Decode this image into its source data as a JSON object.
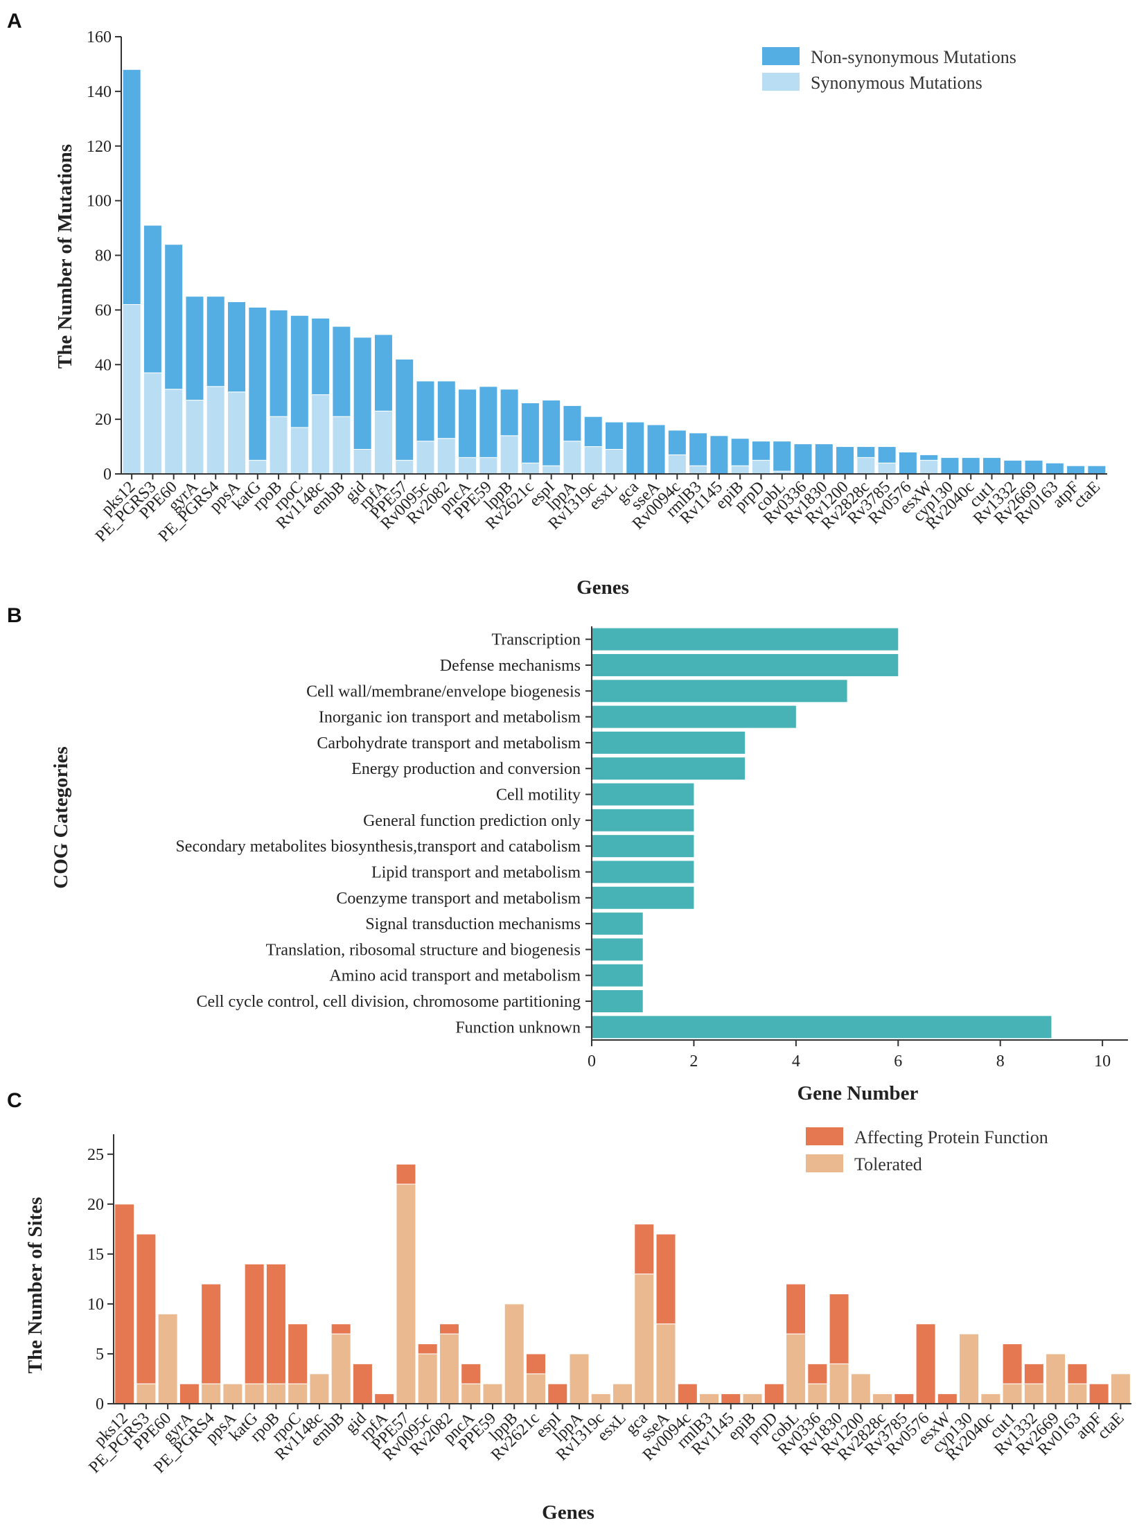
{
  "figure": {
    "panels": [
      "A",
      "B",
      "C"
    ]
  },
  "colors": {
    "nonsyn": "#54ADE3",
    "syn": "#B9DDF3",
    "cog": "#48B3B7",
    "affect": "#E57751",
    "tolerated": "#EBB98F"
  },
  "chart_data": [
    {
      "id": "A",
      "type": "bar",
      "stacked": true,
      "xlabel": "Genes",
      "ylabel": "The Number of Mutations",
      "ylim": [
        0,
        160
      ],
      "yticks": [
        0,
        20,
        40,
        60,
        80,
        100,
        120,
        140,
        160
      ],
      "legend_position": "top-right",
      "categories": [
        "pks12",
        "PE_PGRS3",
        "PPE60",
        "gyrA",
        "PE_PGRS4",
        "ppsA",
        "katG",
        "rpoB",
        "rpoC",
        "Rv1148c",
        "embB",
        "gid",
        "rpfA",
        "PPE57",
        "Rv0095c",
        "Rv2082",
        "pncA",
        "PPE59",
        "lppB",
        "Rv2621c",
        "espI",
        "lppA",
        "Rv1319c",
        "esxL",
        "gca",
        "sseA",
        "Rv0094c",
        "rmlB3",
        "Rv1145",
        "epiB",
        "prpD",
        "cobL",
        "Rv0336",
        "Rv1830",
        "Rv1200",
        "Rv2828c",
        "Rv3785",
        "Rv0576",
        "esxW",
        "cyp130",
        "Rv2040c",
        "cut1",
        "Rv1332",
        "Rv2669",
        "Rv0163",
        "atpF",
        "ctaE"
      ],
      "series": [
        {
          "name": "Non-synonymous Mutations",
          "values": [
            86,
            54,
            53,
            38,
            33,
            33,
            56,
            39,
            41,
            28,
            33,
            41,
            28,
            37,
            22,
            21,
            25,
            26,
            17,
            22,
            24,
            13,
            11,
            10,
            19,
            18,
            9,
            12,
            14,
            10,
            7,
            11,
            11,
            11,
            10,
            4,
            6,
            8,
            2,
            6,
            6,
            6,
            5,
            5,
            4,
            3,
            3
          ]
        },
        {
          "name": "Synonymous Mutations",
          "values": [
            62,
            37,
            31,
            27,
            32,
            30,
            5,
            21,
            17,
            29,
            21,
            9,
            23,
            5,
            12,
            13,
            6,
            6,
            14,
            4,
            3,
            12,
            10,
            9,
            0,
            0,
            7,
            3,
            0,
            3,
            5,
            1,
            0,
            0,
            0,
            6,
            4,
            0,
            5,
            0,
            0,
            0,
            0,
            0,
            0,
            0,
            0
          ]
        }
      ]
    },
    {
      "id": "B",
      "type": "bar",
      "orientation": "horizontal",
      "xlabel": "Gene Number",
      "ylabel": "COG Categories",
      "xlim": [
        0,
        10.5
      ],
      "xticks": [
        0,
        2,
        4,
        6,
        8,
        10
      ],
      "categories": [
        "Transcription",
        "Defense mechanisms",
        "Cell wall/membrane/envelope biogenesis",
        "Inorganic ion transport and metabolism",
        "Carbohydrate transport and metabolism",
        "Energy production and conversion",
        "Cell motility",
        "General function prediction only",
        "Secondary metabolites biosynthesis,transport and catabolism",
        "Lipid transport and metabolism",
        "Coenzyme transport and metabolism",
        "Signal transduction mechanisms",
        "Translation, ribosomal structure and biogenesis",
        "Amino acid transport and metabolism",
        "Cell cycle control, cell division, chromosome partitioning",
        "Function unknown"
      ],
      "values": [
        6,
        6,
        5,
        4,
        3,
        3,
        2,
        2,
        2,
        2,
        2,
        1,
        1,
        1,
        1,
        9
      ]
    },
    {
      "id": "C",
      "type": "bar",
      "stacked": true,
      "xlabel": "Genes",
      "ylabel": "The Number of Sites",
      "ylim": [
        0,
        27
      ],
      "yticks": [
        0,
        5,
        10,
        15,
        20,
        25
      ],
      "legend_position": "top-right",
      "categories": [
        "pks12",
        "PE_PGRS3",
        "PPE60",
        "gyrA",
        "PE_PGRS4",
        "ppsA",
        "katG",
        "rpoB",
        "rpoC",
        "Rv1148c",
        "embB",
        "gid",
        "rpfA",
        "PPE57",
        "Rv0095c",
        "Rv2082",
        "pncA",
        "PPE59",
        "lppB",
        "Rv2621c",
        "espI",
        "lppA",
        "Rv1319c",
        "esxL",
        "gca",
        "sseA",
        "Rv0094c",
        "rmlB3",
        "Rv1145",
        "epiB",
        "prpD",
        "cobL",
        "Rv0336",
        "Rv1830",
        "Rv1200",
        "Rv2828c",
        "Rv3785",
        "Rv0576",
        "esxW",
        "cyp130",
        "Rv2040c",
        "cut1",
        "Rv1332",
        "Rv2669",
        "Rv0163",
        "atpF",
        "ctaE"
      ],
      "series": [
        {
          "name": "Affecting Protein Function",
          "values": [
            20,
            15,
            0,
            2,
            10,
            0,
            12,
            12,
            6,
            0,
            1,
            4,
            1,
            2,
            1,
            1,
            2,
            0,
            0,
            2,
            2,
            0,
            0,
            0,
            5,
            9,
            2,
            0,
            1,
            0,
            2,
            5,
            2,
            7,
            0,
            0,
            1,
            8,
            1,
            0,
            0,
            4,
            2,
            0,
            2,
            2,
            0
          ]
        },
        {
          "name": "Tolerated",
          "values": [
            0,
            2,
            9,
            0,
            2,
            2,
            2,
            2,
            2,
            3,
            7,
            0,
            0,
            22,
            5,
            7,
            2,
            2,
            10,
            3,
            0,
            5,
            1,
            2,
            13,
            8,
            0,
            1,
            0,
            1,
            0,
            7,
            2,
            4,
            3,
            1,
            0,
            0,
            0,
            7,
            1,
            2,
            2,
            5,
            2,
            0,
            3
          ]
        }
      ]
    }
  ]
}
